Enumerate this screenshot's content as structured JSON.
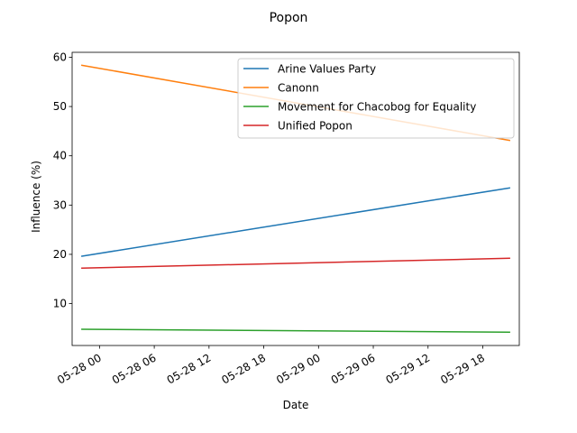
{
  "chart_data": {
    "type": "line",
    "title": "Popon",
    "xlabel": "Date",
    "ylabel": "Influence (%)",
    "x_format": "datetime",
    "x": [
      "2024-05-27 22:00",
      "2024-05-29 21:00"
    ],
    "xlim": [
      "2024-05-27 21:00",
      "2024-05-29 22:00"
    ],
    "ylim": [
      1.5,
      61
    ],
    "xticks": [
      {
        "at": "2024-05-28 00:00",
        "label": "05-28 00"
      },
      {
        "at": "2024-05-28 06:00",
        "label": "05-28 06"
      },
      {
        "at": "2024-05-28 12:00",
        "label": "05-28 12"
      },
      {
        "at": "2024-05-28 18:00",
        "label": "05-28 18"
      },
      {
        "at": "2024-05-29 00:00",
        "label": "05-29 00"
      },
      {
        "at": "2024-05-29 06:00",
        "label": "05-29 06"
      },
      {
        "at": "2024-05-29 12:00",
        "label": "05-29 12"
      },
      {
        "at": "2024-05-29 18:00",
        "label": "05-29 18"
      }
    ],
    "yticks": [
      10,
      20,
      30,
      40,
      50,
      60
    ],
    "grid": false,
    "legend_position": "top-right",
    "series": [
      {
        "name": "Arine Values Party",
        "color": "#1f77b4",
        "values": [
          19.6,
          33.5
        ]
      },
      {
        "name": "Canonn",
        "color": "#ff7f0e",
        "values": [
          58.4,
          43.1
        ]
      },
      {
        "name": "Movement for Chacobog for Equality",
        "color": "#2ca02c",
        "values": [
          4.8,
          4.2
        ]
      },
      {
        "name": "Unified Popon",
        "color": "#d62728",
        "values": [
          17.2,
          19.2
        ]
      }
    ]
  }
}
